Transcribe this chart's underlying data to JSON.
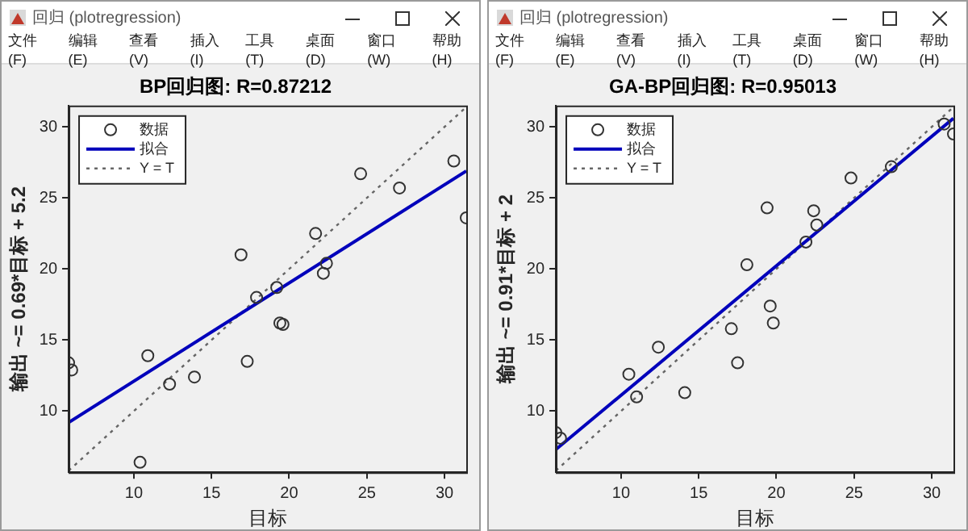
{
  "chart_data": [
    {
      "type": "scatter",
      "title": "BP回归图: R=0.87212",
      "xlabel": "目标",
      "ylabel": "输出 ~= 0.69*目标 + 5.2",
      "xlim": [
        5.8,
        31.4
      ],
      "ylim": [
        5.7,
        31.5
      ],
      "xticks": [
        10,
        15,
        20,
        25,
        30
      ],
      "yticks": [
        10,
        15,
        20,
        25,
        30
      ],
      "grid": false,
      "legend": "top left",
      "annotations": [
        "回归 (plotregression)",
        "文件(F)",
        "编辑(E)",
        "查看(V)",
        "插入(I)",
        "工具(T)",
        "桌面(D)",
        "窗口(W)",
        "帮助(H)"
      ],
      "series": [
        {
          "name": "数据",
          "marker": "circle",
          "color": "#333333",
          "x": [
            5.8,
            6.0,
            10.4,
            10.9,
            12.3,
            13.9,
            16.9,
            17.3,
            17.9,
            19.2,
            19.4,
            19.6,
            21.7,
            22.2,
            22.4,
            24.6,
            27.1,
            30.6,
            31.4
          ],
          "values": [
            13.4,
            12.9,
            6.4,
            13.9,
            11.9,
            12.4,
            21.0,
            13.5,
            18.0,
            18.7,
            16.2,
            16.1,
            22.5,
            19.7,
            20.4,
            26.7,
            25.7,
            27.6,
            23.6
          ]
        },
        {
          "name": "拟合",
          "type": "line",
          "marker": "none",
          "line_style": "solid",
          "color": "#0000bb",
          "x": [
            5.8,
            31.4
          ],
          "values": [
            9.2,
            26.9
          ]
        },
        {
          "name": "Y = T",
          "type": "line",
          "marker": "none",
          "line_style": "dotted",
          "color": "#666666",
          "x": [
            5.8,
            31.4
          ],
          "values": [
            5.8,
            31.4
          ]
        }
      ]
    },
    {
      "type": "scatter",
      "title": "GA-BP回归图: R=0.95013",
      "xlabel": "目标",
      "ylabel": "输出 ~= 0.91*目标 + 2",
      "xlim": [
        5.8,
        31.4
      ],
      "ylim": [
        5.7,
        31.5
      ],
      "xticks": [
        10,
        15,
        20,
        25,
        30
      ],
      "yticks": [
        10,
        15,
        20,
        25,
        30
      ],
      "grid": false,
      "legend": "top left",
      "annotations": [
        "回归 (plotregression)",
        "文件(F)",
        "编辑(E)",
        "查看(V)",
        "插入(I)",
        "工具(T)",
        "桌面(D)",
        "窗口(W)",
        "帮助(H)"
      ],
      "series": [
        {
          "name": "数据",
          "marker": "circle",
          "color": "#333333",
          "x": [
            5.8,
            6.1,
            10.5,
            11.0,
            12.4,
            14.1,
            17.1,
            17.5,
            18.1,
            19.4,
            19.6,
            19.8,
            21.9,
            22.4,
            22.6,
            24.8,
            27.4,
            30.8,
            31.4
          ],
          "values": [
            8.5,
            8.1,
            12.6,
            11.0,
            14.5,
            11.3,
            15.8,
            13.4,
            20.3,
            24.3,
            17.4,
            16.2,
            21.9,
            24.1,
            23.1,
            26.4,
            27.2,
            30.2,
            29.5
          ]
        },
        {
          "name": "拟合",
          "type": "line",
          "marker": "none",
          "line_style": "solid",
          "color": "#0000bb",
          "x": [
            5.8,
            31.4
          ],
          "values": [
            7.3,
            30.6
          ]
        },
        {
          "name": "Y = T",
          "type": "line",
          "marker": "none",
          "line_style": "dotted",
          "color": "#666666",
          "x": [
            5.8,
            31.4
          ],
          "values": [
            5.8,
            31.4
          ]
        }
      ]
    }
  ]
}
